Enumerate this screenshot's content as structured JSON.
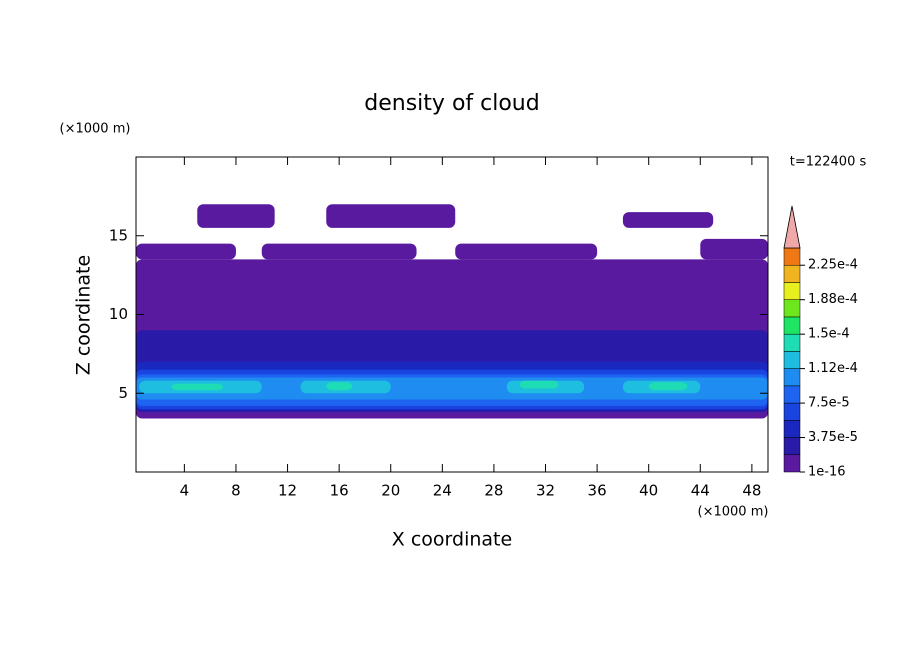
{
  "chart_data": {
    "type": "contour",
    "title": "density of cloud",
    "xlabel": "X coordinate",
    "ylabel": "Z coordinate",
    "x_unit": "(×1000 m)",
    "y_unit": "(×1000 m)",
    "annotation": "t=122400 s",
    "xlim": [
      0.25,
      49.25
    ],
    "ylim": [
      0,
      20
    ],
    "xticks": [
      4,
      8,
      12,
      16,
      20,
      24,
      28,
      32,
      36,
      40,
      44,
      48
    ],
    "yticks": [
      5,
      10,
      15
    ],
    "regions": [
      {
        "x": [
          0.25,
          49.25
        ],
        "z": [
          3.4,
          13.5
        ],
        "value": 1e-05
      },
      {
        "x": [
          0.25,
          8
        ],
        "z": [
          13.5,
          14.5
        ],
        "value": 1e-05
      },
      {
        "x": [
          10,
          22
        ],
        "z": [
          13.5,
          14.5
        ],
        "value": 1e-05
      },
      {
        "x": [
          25,
          36
        ],
        "z": [
          13.5,
          14.5
        ],
        "value": 1e-05
      },
      {
        "x": [
          44,
          49.25
        ],
        "z": [
          13.5,
          14.8
        ],
        "value": 1e-05
      },
      {
        "x": [
          5,
          11
        ],
        "z": [
          15.5,
          17
        ],
        "value": 1e-05
      },
      {
        "x": [
          15,
          25
        ],
        "z": [
          15.5,
          17
        ],
        "value": 1e-05
      },
      {
        "x": [
          38,
          45
        ],
        "z": [
          15.5,
          16.5
        ],
        "value": 1e-05
      },
      {
        "x": [
          0.25,
          49.25
        ],
        "z": [
          3.8,
          9
        ],
        "value": 2.8e-05
      },
      {
        "x": [
          0.25,
          49.25
        ],
        "z": [
          3.9,
          7
        ],
        "value": 4.5e-05
      },
      {
        "x": [
          0.25,
          49.25
        ],
        "z": [
          4,
          6.5
        ],
        "value": 6.5e-05
      },
      {
        "x": [
          0.25,
          49.25
        ],
        "z": [
          4.2,
          6.2
        ],
        "value": 8.5e-05
      },
      {
        "x": [
          0.25,
          49.25
        ],
        "z": [
          4.6,
          6
        ],
        "value": 0.000103
      },
      {
        "x": [
          0.5,
          10
        ],
        "z": [
          5,
          5.8
        ],
        "value": 0.000122
      },
      {
        "x": [
          13,
          20
        ],
        "z": [
          5,
          5.8
        ],
        "value": 0.000122
      },
      {
        "x": [
          29,
          35
        ],
        "z": [
          5,
          5.8
        ],
        "value": 0.000122
      },
      {
        "x": [
          38,
          44
        ],
        "z": [
          5,
          5.8
        ],
        "value": 0.000122
      },
      {
        "x": [
          3,
          7
        ],
        "z": [
          5.2,
          5.6
        ],
        "value": 0.00014
      },
      {
        "x": [
          15,
          17
        ],
        "z": [
          5.2,
          5.7
        ],
        "value": 0.00014
      },
      {
        "x": [
          30,
          33
        ],
        "z": [
          5.3,
          5.8
        ],
        "value": 0.00014
      },
      {
        "x": [
          40,
          43
        ],
        "z": [
          5.2,
          5.7
        ],
        "value": 0.00014
      }
    ],
    "colorbar": {
      "levels": [
        1e-16,
        1.875e-05,
        3.75e-05,
        5.625e-05,
        7.5e-05,
        9.375e-05,
        0.0001125,
        0.00013125,
        0.00015,
        0.00016875,
        0.0001875,
        0.00020625,
        0.000225,
        0.00024375
      ],
      "colors": [
        "#5a1aa0",
        "#2a1aa8",
        "#1a28c0",
        "#1a44e0",
        "#1e64f0",
        "#1e8cf0",
        "#1ebee0",
        "#1edcb4",
        "#1ee664",
        "#6ee61e",
        "#e6f01e",
        "#f0b41e",
        "#f07814",
        "#f03c14"
      ],
      "extend_color": "#f0a8a8",
      "ticks": [
        1e-16,
        {
          "value": 3.75e-05,
          "label": "3.75e-5"
        },
        {
          "value": 7.5e-05,
          "label": "7.5e-5"
        },
        {
          "value": 0.0001125,
          "label": "1.12e-4"
        },
        {
          "value": 0.00015,
          "label": "1.5e-4"
        },
        {
          "value": 0.0001875,
          "label": "1.88e-4"
        },
        {
          "value": 0.000225,
          "label": "2.25e-4"
        }
      ]
    }
  }
}
